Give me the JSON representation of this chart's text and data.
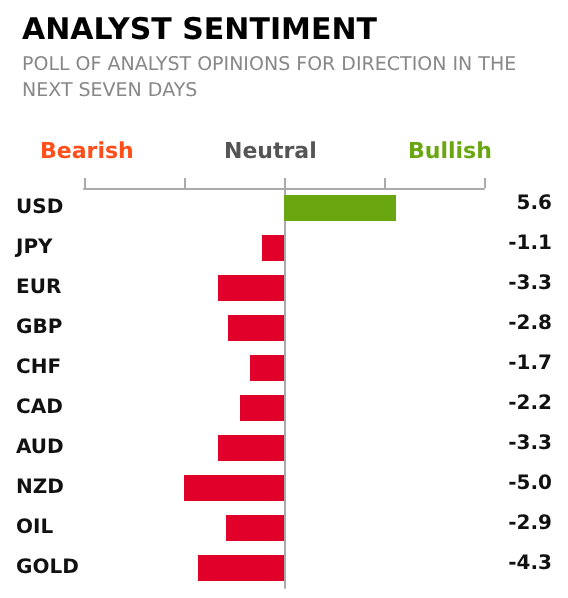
{
  "chart_data": {
    "type": "bar",
    "orientation": "horizontal",
    "title": "ANALYST SENTIMENT",
    "subtitle": "POLL OF ANALYST OPINIONS FOR DIRECTION IN THE NEXT SEVEN DAYS",
    "annotations": [
      "Bearish",
      "Neutral",
      "Bullish"
    ],
    "categories": [
      "USD",
      "JPY",
      "EUR",
      "GBP",
      "CHF",
      "CAD",
      "AUD",
      "NZD",
      "OIL",
      "GOLD"
    ],
    "values": [
      5.6,
      -1.1,
      -3.3,
      -2.8,
      -1.7,
      -2.2,
      -3.3,
      -5.0,
      -2.9,
      -4.3
    ],
    "colors": [
      "#6aa60f",
      "#e0002a",
      "#e0002a",
      "#e0002a",
      "#e0002a",
      "#e0002a",
      "#e0002a",
      "#e0002a",
      "#e0002a",
      "#e0002a"
    ],
    "value_labels": [
      "5.6",
      "-1.1",
      "-3.3",
      "-2.8",
      "-1.7",
      "-2.2",
      "-3.3",
      "-5.0",
      "-2.9",
      "-4.3"
    ],
    "xlim": [
      -10,
      10
    ],
    "xticks": [
      {
        "value": -10,
        "label": null
      },
      {
        "value": -5,
        "label": null
      },
      {
        "value": 0,
        "label": null
      },
      {
        "value": 5,
        "label": null
      },
      {
        "value": 10,
        "label": null
      }
    ],
    "grid": false
  }
}
